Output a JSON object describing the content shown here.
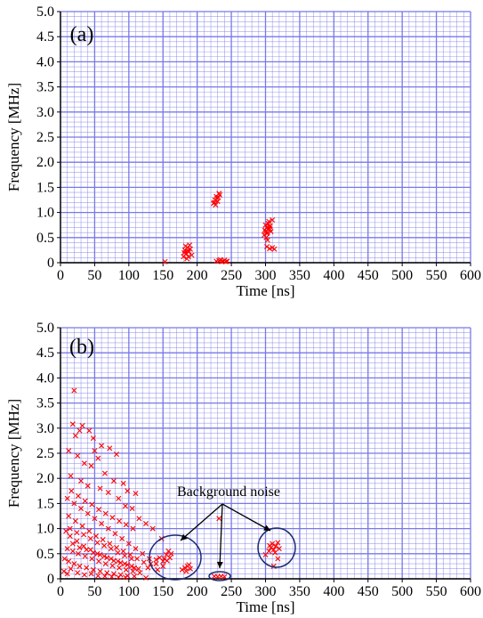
{
  "chart_data": [
    {
      "type": "scatter",
      "panel_label": "(a)",
      "xlabel": "Time [ns]",
      "ylabel": "Frequency [MHz]",
      "xlim": [
        0,
        600
      ],
      "ylim": [
        0,
        5.0
      ],
      "xticks": [
        0,
        50,
        100,
        150,
        200,
        250,
        300,
        350,
        400,
        450,
        500,
        550,
        600
      ],
      "yticks": [
        "0",
        "0.5",
        "1.0",
        "1.5",
        "2.0",
        "2.5",
        "3.0",
        "3.5",
        "4.0",
        "4.5",
        "5.0"
      ],
      "grid": true,
      "marker": "x",
      "color": "#ff0000",
      "gridColor": "#7878e8",
      "series": [
        {
          "points": [
            [
              153,
              0.02
            ],
            [
              180,
              0.12
            ],
            [
              182,
              0.25
            ],
            [
              184,
              0.18
            ],
            [
              186,
              0.3
            ],
            [
              188,
              0.22
            ],
            [
              190,
              0.27
            ],
            [
              185,
              0.08
            ],
            [
              192,
              0.15
            ],
            [
              183,
              0.33
            ],
            [
              187,
              0.12
            ],
            [
              189,
              0.35
            ],
            [
              181,
              0.2
            ],
            [
              186,
              0.24
            ],
            [
              224,
              1.18
            ],
            [
              226,
              1.25
            ],
            [
              228,
              1.32
            ],
            [
              230,
              1.22
            ],
            [
              232,
              1.38
            ],
            [
              227,
              1.15
            ],
            [
              229,
              1.28
            ],
            [
              231,
              1.3
            ],
            [
              225,
              1.2
            ],
            [
              233,
              1.35
            ],
            [
              228,
              0.03
            ],
            [
              232,
              0.04
            ],
            [
              236,
              0.02
            ],
            [
              240,
              0.05
            ],
            [
              244,
              0.03
            ],
            [
              234,
              0.06
            ],
            [
              238,
              0.03
            ],
            [
              242,
              0.02
            ],
            [
              298,
              0.55
            ],
            [
              300,
              0.62
            ],
            [
              302,
              0.7
            ],
            [
              304,
              0.78
            ],
            [
              306,
              0.68
            ],
            [
              301,
              0.5
            ],
            [
              303,
              0.6
            ],
            [
              305,
              0.82
            ],
            [
              307,
              0.73
            ],
            [
              299,
              0.65
            ],
            [
              302,
              0.58
            ],
            [
              304,
              0.66
            ],
            [
              306,
              0.72
            ],
            [
              300,
              0.75
            ],
            [
              308,
              0.62
            ],
            [
              310,
              0.85
            ],
            [
              303,
              0.45
            ],
            [
              302,
              0.32
            ],
            [
              306,
              0.28
            ],
            [
              310,
              0.3
            ],
            [
              313,
              0.27
            ]
          ]
        }
      ],
      "annotations": []
    },
    {
      "type": "scatter",
      "panel_label": "(b)",
      "xlabel": "Time [ns]",
      "ylabel": "Frequency [MHz]",
      "xlim": [
        0,
        600
      ],
      "ylim": [
        0,
        5.0
      ],
      "xticks": [
        0,
        50,
        100,
        150,
        200,
        250,
        300,
        350,
        400,
        450,
        500,
        550,
        600
      ],
      "yticks": [
        "0",
        "0.5",
        "1.0",
        "1.5",
        "2.0",
        "2.5",
        "3.0",
        "3.5",
        "4.0",
        "4.5",
        "5.0"
      ],
      "grid": true,
      "marker": "x",
      "color": "#ff0000",
      "gridColor": "#7878e8",
      "series": [
        {
          "points": [
            [
              20,
              3.75
            ],
            [
              18,
              3.08
            ],
            [
              22,
              2.85
            ],
            [
              28,
              2.95
            ],
            [
              32,
              3.05
            ],
            [
              42,
              2.95
            ],
            [
              48,
              2.8
            ],
            [
              50,
              2.55
            ],
            [
              60,
              2.65
            ],
            [
              72,
              2.6
            ],
            [
              82,
              2.48
            ],
            [
              12,
              2.55
            ],
            [
              25,
              2.45
            ],
            [
              35,
              2.3
            ],
            [
              45,
              2.25
            ],
            [
              55,
              2.4
            ],
            [
              65,
              2.1
            ],
            [
              78,
              1.95
            ],
            [
              92,
              1.9
            ],
            [
              98,
              1.75
            ],
            [
              110,
              1.7
            ],
            [
              15,
              2.05
            ],
            [
              30,
              1.95
            ],
            [
              40,
              1.85
            ],
            [
              58,
              1.8
            ],
            [
              70,
              1.72
            ],
            [
              85,
              1.6
            ],
            [
              95,
              1.45
            ],
            [
              105,
              1.4
            ],
            [
              115,
              1.2
            ],
            [
              125,
              1.1
            ],
            [
              135,
              1.0
            ],
            [
              148,
              0.8
            ],
            [
              10,
              1.6
            ],
            [
              20,
              1.5
            ],
            [
              30,
              1.4
            ],
            [
              40,
              1.3
            ],
            [
              50,
              1.2
            ],
            [
              60,
              1.1
            ],
            [
              70,
              1.0
            ],
            [
              80,
              0.9
            ],
            [
              90,
              0.8
            ],
            [
              100,
              0.7
            ],
            [
              110,
              0.6
            ],
            [
              120,
              0.5
            ],
            [
              130,
              0.4
            ],
            [
              140,
              0.3
            ],
            [
              150,
              0.25
            ],
            [
              12,
              1.25
            ],
            [
              22,
              1.15
            ],
            [
              32,
              1.05
            ],
            [
              42,
              0.95
            ],
            [
              52,
              0.85
            ],
            [
              62,
              0.78
            ],
            [
              72,
              0.7
            ],
            [
              82,
              0.62
            ],
            [
              92,
              0.55
            ],
            [
              102,
              0.48
            ],
            [
              112,
              0.4
            ],
            [
              122,
              0.33
            ],
            [
              8,
              0.95
            ],
            [
              14,
              0.85
            ],
            [
              24,
              0.75
            ],
            [
              34,
              0.65
            ],
            [
              44,
              0.58
            ],
            [
              54,
              0.5
            ],
            [
              64,
              0.45
            ],
            [
              74,
              0.4
            ],
            [
              84,
              0.35
            ],
            [
              94,
              0.3
            ],
            [
              104,
              0.25
            ],
            [
              114,
              0.2
            ],
            [
              10,
              0.6
            ],
            [
              18,
              0.55
            ],
            [
              26,
              0.5
            ],
            [
              36,
              0.45
            ],
            [
              46,
              0.4
            ],
            [
              56,
              0.35
            ],
            [
              66,
              0.3
            ],
            [
              76,
              0.26
            ],
            [
              86,
              0.22
            ],
            [
              96,
              0.18
            ],
            [
              106,
              0.15
            ],
            [
              116,
              0.12
            ],
            [
              6,
              0.4
            ],
            [
              12,
              0.35
            ],
            [
              20,
              0.3
            ],
            [
              28,
              0.25
            ],
            [
              38,
              0.22
            ],
            [
              48,
              0.18
            ],
            [
              58,
              0.15
            ],
            [
              68,
              0.12
            ],
            [
              78,
              0.1
            ],
            [
              88,
              0.08
            ],
            [
              98,
              0.06
            ],
            [
              108,
              0.05
            ],
            [
              5,
              0.15
            ],
            [
              10,
              0.1
            ],
            [
              15,
              0.2
            ],
            [
              25,
              0.12
            ],
            [
              35,
              0.08
            ],
            [
              45,
              0.1
            ],
            [
              55,
              0.06
            ],
            [
              65,
              0.05
            ],
            [
              75,
              0.04
            ],
            [
              85,
              0.03
            ],
            [
              95,
              0.03
            ],
            [
              125,
              0.02
            ],
            [
              16,
              1.75
            ],
            [
              26,
              1.65
            ],
            [
              36,
              1.55
            ],
            [
              46,
              1.48
            ],
            [
              56,
              1.38
            ],
            [
              66,
              1.3
            ],
            [
              76,
              1.22
            ],
            [
              86,
              1.15
            ],
            [
              96,
              1.08
            ],
            [
              106,
              1.0
            ],
            [
              14,
              1.0
            ],
            [
              24,
              0.92
            ],
            [
              34,
              0.88
            ],
            [
              44,
              0.8
            ],
            [
              54,
              0.72
            ],
            [
              64,
              0.66
            ],
            [
              74,
              0.6
            ],
            [
              84,
              0.52
            ],
            [
              94,
              0.46
            ],
            [
              104,
              0.4
            ],
            [
              18,
              0.7
            ],
            [
              28,
              0.62
            ],
            [
              38,
              0.58
            ],
            [
              48,
              0.52
            ],
            [
              58,
              0.48
            ],
            [
              68,
              0.42
            ],
            [
              78,
              0.36
            ],
            [
              88,
              0.32
            ],
            [
              98,
              0.28
            ],
            [
              108,
              0.22
            ],
            [
              145,
              0.42
            ],
            [
              150,
              0.35
            ],
            [
              140,
              0.38
            ],
            [
              132,
              0.3
            ],
            [
              128,
              0.22
            ],
            [
              142,
              0.18
            ],
            [
              152,
              0.4
            ],
            [
              155,
              0.48
            ],
            [
              158,
              0.55
            ],
            [
              160,
              0.42
            ],
            [
              156,
              0.36
            ],
            [
              162,
              0.5
            ],
            [
              178,
              0.18
            ],
            [
              182,
              0.22
            ],
            [
              186,
              0.25
            ],
            [
              184,
              0.15
            ],
            [
              190,
              0.2
            ],
            [
              188,
              0.28
            ],
            [
              225,
              0.05
            ],
            [
              230,
              0.04
            ],
            [
              235,
              0.05
            ],
            [
              240,
              0.04
            ],
            [
              232,
              1.2
            ],
            [
              300,
              0.48
            ],
            [
              305,
              0.55
            ],
            [
              308,
              0.62
            ],
            [
              312,
              0.58
            ],
            [
              310,
              0.7
            ],
            [
              315,
              0.65
            ],
            [
              318,
              0.72
            ],
            [
              314,
              0.52
            ],
            [
              306,
              0.66
            ],
            [
              320,
              0.6
            ],
            [
              312,
              0.25
            ],
            [
              318,
              0.4
            ]
          ]
        }
      ],
      "annotations": [
        {
          "text": "Background noise"
        }
      ]
    }
  ]
}
